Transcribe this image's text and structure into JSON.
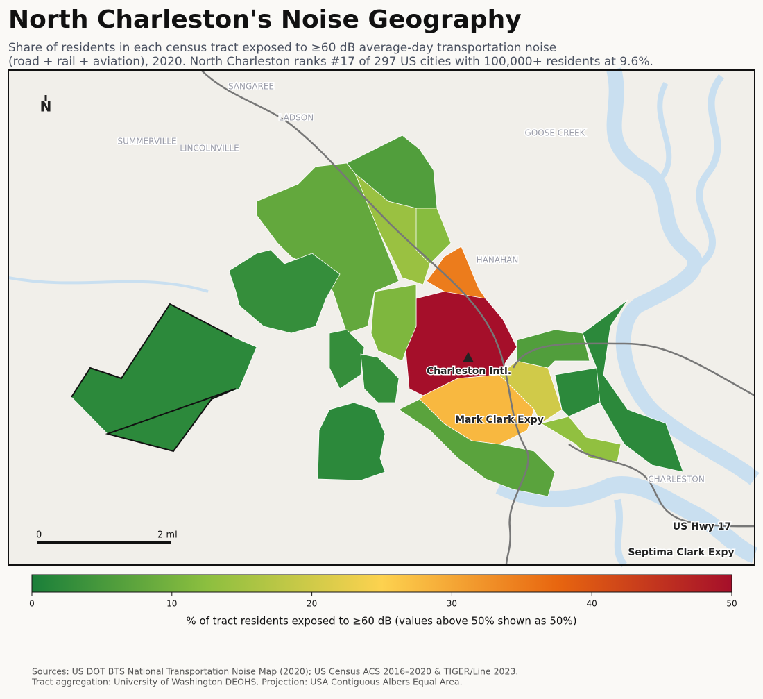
{
  "header": {
    "title": "North Charleston's Noise Geography",
    "subtitle": [
      "Share of residents in each census tract exposed to ≥60 dB average-day transportation noise",
      "(road + rail + aviation), 2020. North Charleston ranks #17 of 297 US cities with 100,000+ residents at 9.6%."
    ]
  },
  "map": {
    "north": "N",
    "places": [
      "SANGAREE",
      "LADSON",
      "SUMMERVILLE",
      "LINCOLNVILLE",
      "GOOSE CREEK",
      "HANAHAN",
      "CHARLESTON"
    ],
    "landmarks": [
      "Charleston Intl.",
      "Mark Clark Expy",
      "US Hwy 17",
      "Septima Clark Expy"
    ],
    "scale_bar": [
      "0",
      "2 mi"
    ],
    "tract_values": [
      2,
      2,
      8,
      3,
      3,
      14,
      6,
      12,
      35,
      50,
      11,
      28,
      20,
      6,
      2,
      7,
      13,
      2,
      3
    ]
  },
  "legend": {
    "lim": [
      0,
      50
    ],
    "ticks": [
      0,
      10,
      20,
      30,
      40,
      50
    ],
    "colormap": [
      "#1a7f3a",
      "#8cbf3f",
      "#fdd24f",
      "#e8660f",
      "#a50f2a"
    ],
    "label": "% of tract residents exposed to ≥60 dB (values above 50% shown as 50%)"
  },
  "footer": {
    "sources": [
      "Sources: US DOT BTS National Transportation Noise Map (2020); US Census ACS 2016–2020 & TIGER/Line 2023.",
      "Tract aggregation: University of Washington DEOHS. Projection: USA Contiguous Albers Equal Area."
    ]
  }
}
